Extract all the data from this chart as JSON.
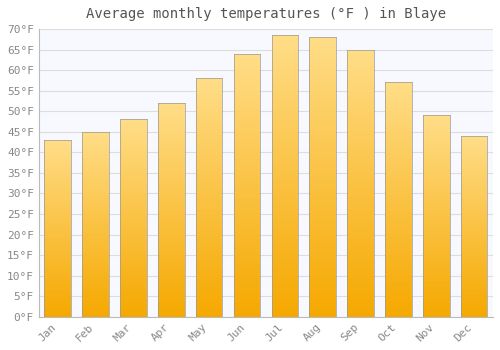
{
  "title": "Average monthly temperatures (°F ) in Blaye",
  "months": [
    "Jan",
    "Feb",
    "Mar",
    "Apr",
    "May",
    "Jun",
    "Jul",
    "Aug",
    "Sep",
    "Oct",
    "Nov",
    "Dec"
  ],
  "values": [
    43,
    45,
    48,
    52,
    58,
    64,
    68.5,
    68,
    65,
    57,
    49,
    44
  ],
  "bar_color_bottom": "#F5A800",
  "bar_color_top": "#FFDD88",
  "bar_edge_color": "#888888",
  "background_color": "#FFFFFF",
  "plot_bg_color": "#F8F8FF",
  "grid_color": "#DDDDDD",
  "ylim": [
    0,
    70
  ],
  "yticks": [
    0,
    5,
    10,
    15,
    20,
    25,
    30,
    35,
    40,
    45,
    50,
    55,
    60,
    65,
    70
  ],
  "ytick_labels": [
    "0°F",
    "5°F",
    "10°F",
    "15°F",
    "20°F",
    "25°F",
    "30°F",
    "35°F",
    "40°F",
    "45°F",
    "50°F",
    "55°F",
    "60°F",
    "65°F",
    "70°F"
  ],
  "title_fontsize": 10,
  "tick_fontsize": 8,
  "tick_color": "#888888",
  "title_color": "#555555"
}
